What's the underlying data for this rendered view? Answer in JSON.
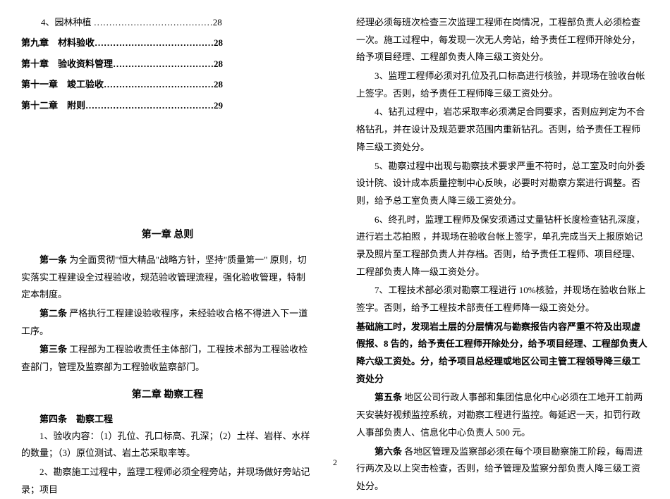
{
  "toc": {
    "item4": "4、园林种植 …………………………………28",
    "ch9": "第九章　材料验收…………………………………28",
    "ch10": "第十章　验收资料管理……………………………28",
    "ch11": "第十一章　竣工验收………………………………28",
    "ch12": "第十二章　附则……………………………………29"
  },
  "chapter1": {
    "title": "第一章 总则",
    "art1_label": "第一条",
    "art1_text": "为全面贯彻\"恒大精品\"战略方针，坚持\"质量第一\" 原则，切实落实工程建设全过程验收，规范验收管理流程，强化验收管理，特制定本制度。",
    "art2_label": "第二条",
    "art2_text": "严格执行工程建设验收程序，未经验收合格不得进入下一道工序。",
    "art3_label": "第三条",
    "art3_text": "工程部为工程验收责任主体部门，工程技术部为工程验收检查部门，管理及监察部为工程验收监察部门。"
  },
  "chapter2": {
    "title": "第二章 勘察工程",
    "art4_label": "第四条　勘察工程",
    "item1": "1、验收内容：（1）孔位、孔口标高、孔深；（2）土样、岩样、水样的数量；（3）原位测试、岩土芯采取率等。",
    "item2": "2、勘察施工过程中，监理工程师必须全程旁站，并现场做好旁站记录；项目"
  },
  "right": {
    "cont1": "经理必须每班次检查三次监理工程师在岗情况，工程部负责人必须检查一次。施工过程中，每发现一次无人旁站，给予责任工程师开除处分，给予项目经理、工程部负责人降三级工资处分。",
    "item3": "3、监理工程师必须对孔位及孔口标高进行核验，并现场在验收台帐上签字。否则，给予责任工程师降三级工资处分。",
    "item4": "4、钻孔过程中，岩芯采取率必须满足合同要求，否则应判定为不合格钻孔，并在设计及规范要求范围内重新钻孔。否则，给予责任工程师降三级工资处分。",
    "item5": "5、勘察过程中出现与勘察技术要求严重不符时，总工室及时向外委设计院、设计成本质量控制中心反映，必要时对勘察方案进行调整。否则，给予总工室负责人降三级工资处分。",
    "item6": "6、终孔时，监理工程师及保安须通过丈量钻杆长度检查钻孔深度，进行岩土芯拍照 ，并现场在验收台帐上签字，单孔完成当天上报原始记录及照片至工程部负责人并存档。否则，给予责任工程师、项目经理、工程部负责人降一级工资处分。",
    "item7": "7、工程技术部必须对勘察工程进行 10%核验，并现场在验收台账上签字。否则，给予工程技术部责任工程师降一级工资处分。",
    "bold_section": "基础施工时，发现岩土层的分层情况与勘察报告内容严重不符及出现虚假报、8 告的，给予责任工程师开除处分，给予项目经理、工程部负责人降六级工资处。分，给予项目总经理或地区公司主管工程领导降三级工资处分",
    "art5_label": "第五条",
    "art5_text": "地区公司行政人事部和集团信息化中心必须在工地开工前两天安装好视频监控系统，对勘察工程进行监控。每延迟一天，扣罚行政人事部负责人、信息化中心负责人 500 元。",
    "art6_label": "第六条",
    "art6_text": "各地区管理及监察部必须在每个项目勘察施工阶段，每周进行两次及以上突击检查，否则，给予管理及监察分部负责人降三级工资处分。"
  },
  "page_number": "2"
}
